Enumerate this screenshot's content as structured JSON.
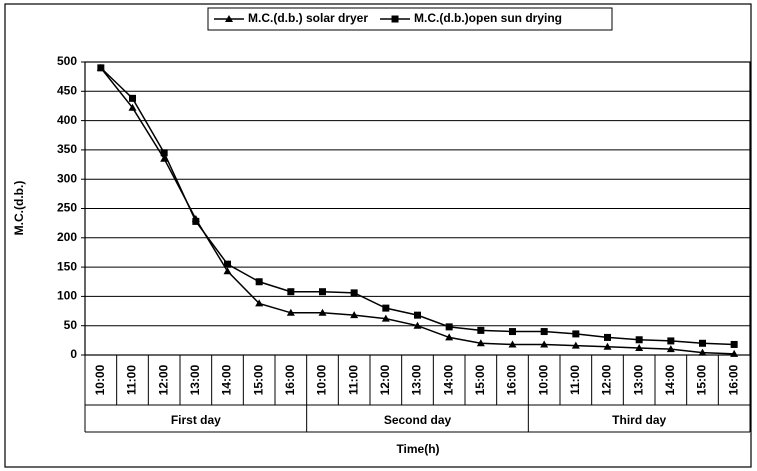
{
  "chart_data": {
    "type": "line",
    "x_label": "Time(h)",
    "y_label": "M.C.(d.b.)",
    "categories": [
      "10:00",
      "11:00",
      "12:00",
      "13:00",
      "14:00",
      "15:00",
      "16:00",
      "10:00",
      "11:00",
      "12:00",
      "13:00",
      "14:00",
      "15:00",
      "16:00",
      "10:00",
      "11:00",
      "12:00",
      "13:00",
      "14:00",
      "15:00",
      "16:00"
    ],
    "groups": [
      "First day",
      "Second day",
      "Third day"
    ],
    "series": [
      {
        "name": "M.C.(d.b.) solar dryer",
        "color": "#000000",
        "marker": "triangle",
        "values": [
          490,
          422,
          335,
          232,
          143,
          88,
          72,
          72,
          68,
          62,
          50,
          30,
          20,
          18,
          18,
          16,
          14,
          12,
          10,
          4,
          2
        ]
      },
      {
        "name": "M.C.(d.b.)open sun drying",
        "color": "#000000",
        "marker": "square",
        "values": [
          490,
          438,
          345,
          228,
          155,
          125,
          108,
          108,
          106,
          80,
          68,
          48,
          42,
          40,
          40,
          36,
          30,
          26,
          24,
          20,
          18
        ]
      }
    ],
    "ylim": [
      0,
      500
    ],
    "yticks": [
      0,
      50,
      100,
      150,
      200,
      250,
      300,
      350,
      400,
      450,
      500
    ],
    "grid": true,
    "legend": "top"
  }
}
